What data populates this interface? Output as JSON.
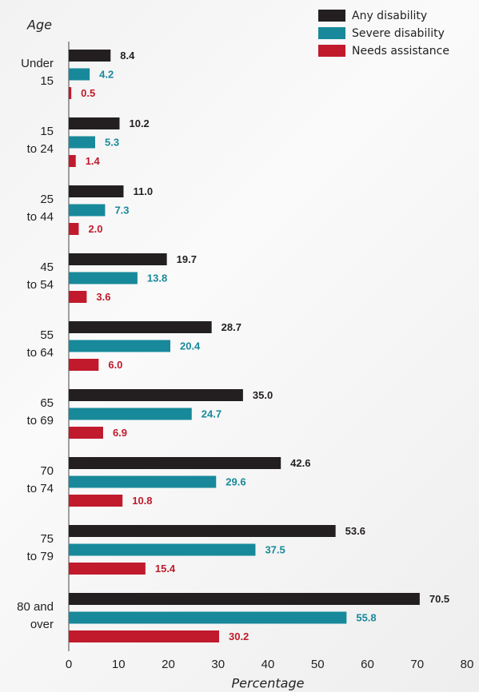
{
  "chart_data": {
    "type": "bar",
    "orientation": "horizontal",
    "y_label": "Age",
    "x_label": "Percentage",
    "categories": [
      [
        "Under",
        "15"
      ],
      [
        "15",
        "to 24"
      ],
      [
        "25",
        "to 44"
      ],
      [
        "45",
        "to 54"
      ],
      [
        "55",
        "to 64"
      ],
      [
        "65",
        "to 69"
      ],
      [
        "70",
        "to 74"
      ],
      [
        "75",
        "to 79"
      ],
      [
        "80 and",
        "over"
      ]
    ],
    "series": [
      {
        "name": "Any disability",
        "color": "#231f20",
        "label_color": "#231f20",
        "values": [
          8.4,
          10.2,
          11.0,
          19.7,
          28.7,
          35.0,
          42.6,
          53.6,
          70.5
        ],
        "value_labels": [
          "8.4",
          "10.2",
          "11.0",
          "19.7",
          "28.7",
          "35.0",
          "42.6",
          "53.6",
          "70.5"
        ]
      },
      {
        "name": "Severe disability",
        "color": "#17899a",
        "label_color": "#17899a",
        "values": [
          4.2,
          5.3,
          7.3,
          13.8,
          20.4,
          24.7,
          29.6,
          37.5,
          55.8
        ],
        "value_labels": [
          "4.2",
          "5.3",
          "7.3",
          "13.8",
          "20.4",
          "24.7",
          "29.6",
          "37.5",
          "55.8"
        ]
      },
      {
        "name": "Needs assistance",
        "color": "#c01a2c",
        "label_color": "#c01a2c",
        "values": [
          0.5,
          1.4,
          2.0,
          3.6,
          6.0,
          6.9,
          10.8,
          15.4,
          30.2
        ],
        "value_labels": [
          "0.5",
          "1.4",
          "2.0",
          "3.6",
          "6.0",
          "6.9",
          "10.8",
          "15.4",
          "30.2"
        ]
      }
    ],
    "xlim": [
      0,
      80
    ],
    "xticks": [
      0,
      10,
      20,
      30,
      40,
      50,
      60,
      70,
      80
    ],
    "legend": "upper right"
  }
}
